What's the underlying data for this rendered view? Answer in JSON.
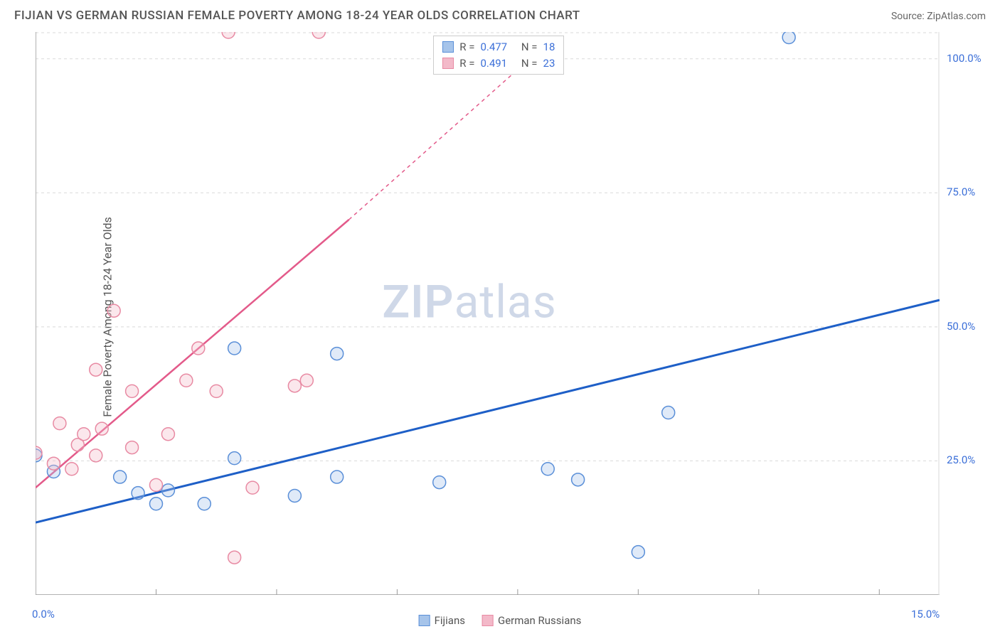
{
  "title": "FIJIAN VS GERMAN RUSSIAN FEMALE POVERTY AMONG 18-24 YEAR OLDS CORRELATION CHART",
  "source_label": "Source: ZipAtlas.com",
  "y_axis_label": "Female Poverty Among 18-24 Year Olds",
  "watermark": {
    "part1": "ZIP",
    "part2": "atlas"
  },
  "chart": {
    "type": "scatter",
    "xlim": [
      0,
      15
    ],
    "ylim": [
      0,
      105
    ],
    "x_ticks": [
      0,
      2,
      4,
      6,
      8,
      10,
      12,
      14,
      15
    ],
    "x_tick_labels": {
      "0": "0.0%",
      "15": "15.0%"
    },
    "y_ticks": [
      25,
      50,
      75,
      100
    ],
    "y_tick_labels": {
      "25": "25.0%",
      "50": "50.0%",
      "75": "75.0%",
      "100": "100.0%"
    },
    "grid_color": "#d9d9d9",
    "grid_dash": "4,4",
    "border_color": "#999999",
    "background_color": "#ffffff",
    "marker_radius": 9,
    "marker_fill_opacity": 0.35,
    "series": [
      {
        "name": "Fijians",
        "color_stroke": "#5a8fd8",
        "color_fill": "#a6c4ea",
        "R": "0.477",
        "N": "18",
        "points": [
          [
            0,
            26
          ],
          [
            0.3,
            23
          ],
          [
            1.4,
            22
          ],
          [
            1.7,
            19
          ],
          [
            2.2,
            19.5
          ],
          [
            2.0,
            17
          ],
          [
            2.8,
            17
          ],
          [
            3.3,
            25.5
          ],
          [
            3.3,
            46
          ],
          [
            4.3,
            18.5
          ],
          [
            5.0,
            22
          ],
          [
            5.0,
            45
          ],
          [
            6.7,
            21
          ],
          [
            8.5,
            23.5
          ],
          [
            9.0,
            21.5
          ],
          [
            10.0,
            8
          ],
          [
            10.5,
            34
          ],
          [
            12.5,
            104
          ]
        ],
        "trendline": {
          "x1": 0,
          "y1": 13.5,
          "x2": 15,
          "y2": 55,
          "color": "#1e5fc7",
          "width": 3
        }
      },
      {
        "name": "German Russians",
        "color_stroke": "#e88aa3",
        "color_fill": "#f3b9c9",
        "R": "0.491",
        "N": "23",
        "points": [
          [
            0,
            26.5
          ],
          [
            0.3,
            24.5
          ],
          [
            0.4,
            32
          ],
          [
            0.6,
            23.5
          ],
          [
            0.7,
            28
          ],
          [
            0.8,
            30
          ],
          [
            1.0,
            26
          ],
          [
            1.0,
            42
          ],
          [
            1.1,
            31
          ],
          [
            1.3,
            53
          ],
          [
            1.6,
            27.5
          ],
          [
            1.6,
            38
          ],
          [
            2.0,
            20.5
          ],
          [
            2.2,
            30
          ],
          [
            2.5,
            40
          ],
          [
            2.7,
            46
          ],
          [
            3.0,
            38
          ],
          [
            3.2,
            105
          ],
          [
            3.3,
            7
          ],
          [
            3.6,
            20
          ],
          [
            4.3,
            39
          ],
          [
            4.5,
            40
          ],
          [
            4.7,
            105
          ]
        ],
        "trendline": {
          "x1": 0,
          "y1": 20,
          "x2": 5.2,
          "y2": 70,
          "x3": 8.5,
          "y3": 103,
          "color": "#e35a8a",
          "width": 2.5
        }
      }
    ]
  },
  "stats_box": {
    "r_label": "R =",
    "n_label": "N ="
  },
  "legend": {
    "series1": "Fijians",
    "series2": "German Russians"
  }
}
